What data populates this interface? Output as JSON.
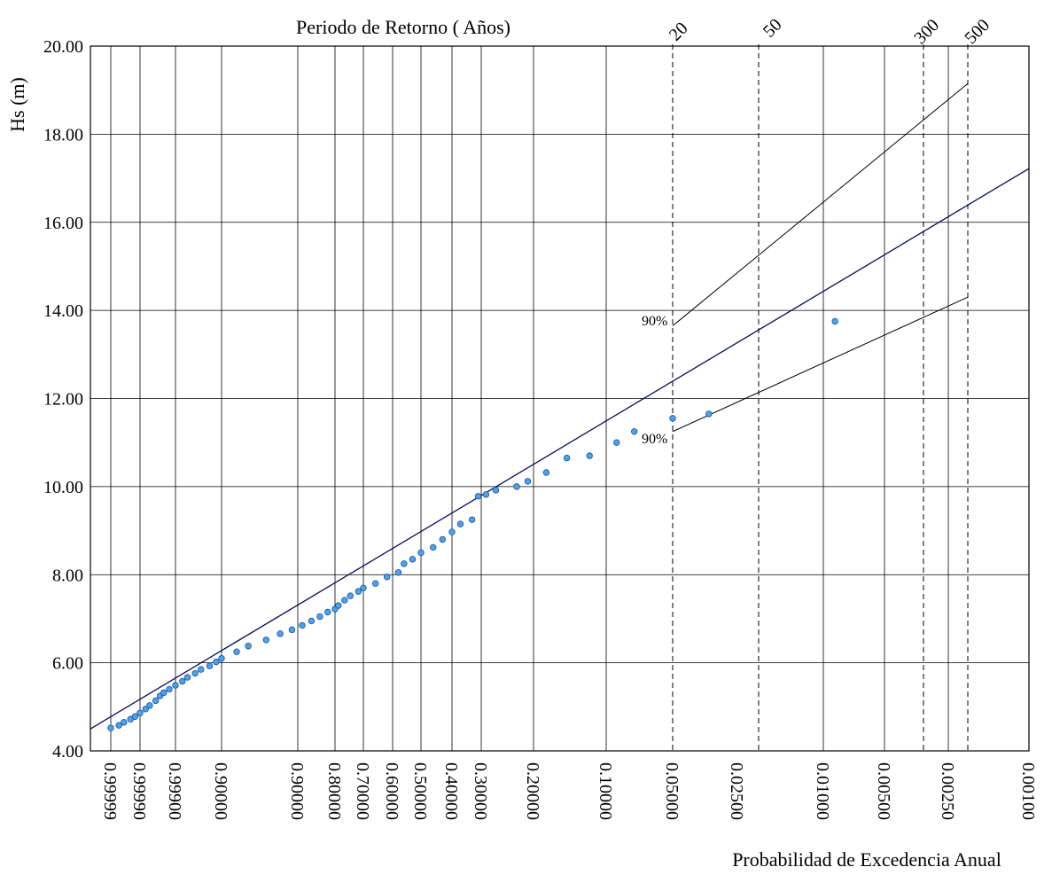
{
  "chart_data": {
    "type": "scatter",
    "title": "Periodo de Retorno ( Años)",
    "xlabel": "Probabilidad de Excedencia Anual",
    "ylabel": "Hs   (m)",
    "ylim": [
      4,
      20
    ],
    "y_ticks": [
      "4.00",
      "6.00",
      "8.00",
      "10.00",
      "12.00",
      "14.00",
      "16.00",
      "18.00",
      "20.00"
    ],
    "x_ticks": [
      "0.99999",
      "0.99990",
      "0.99900",
      "0.90000",
      "0.90000",
      "0.80000",
      "0.70000",
      "0.60000",
      "0.50000",
      "0.40000",
      "0.30000",
      "0.20000",
      "0.10000",
      "0.05000",
      "0.02500",
      "0.01000",
      "0.00500",
      "0.00250",
      "0.00100"
    ],
    "return_periods": [
      "20",
      "50",
      "300",
      "500"
    ],
    "confidence_label": "90%",
    "grid": true,
    "colors": {
      "points": "#4aa3f0",
      "point_edge": "#1f4f8f",
      "fit_line": "#0a0a5a",
      "band": "#000000"
    },
    "series": [
      {
        "values": [
          [
            0.99999,
            4.52
          ],
          [
            0.99998,
            4.58
          ],
          [
            0.99997,
            4.65
          ],
          [
            0.99995,
            4.72
          ],
          [
            0.99993,
            4.78
          ],
          [
            0.9999,
            4.86
          ],
          [
            0.99985,
            4.95
          ],
          [
            0.9998,
            5.03
          ],
          [
            0.9997,
            5.14
          ],
          [
            0.9996,
            5.25
          ],
          [
            0.9995,
            5.32
          ],
          [
            0.9993,
            5.4
          ],
          [
            0.999,
            5.49
          ],
          [
            0.9985,
            5.58
          ],
          [
            0.998,
            5.67
          ],
          [
            0.997,
            5.76
          ],
          [
            0.996,
            5.85
          ],
          [
            0.994,
            5.93
          ],
          [
            0.992,
            6.02
          ],
          [
            0.99,
            6.1
          ],
          [
            0.985,
            6.25
          ],
          [
            0.98,
            6.38
          ],
          [
            0.97,
            6.52
          ],
          [
            0.96,
            6.66
          ],
          [
            0.95,
            6.75
          ],
          [
            0.94,
            6.85
          ],
          [
            0.93,
            6.95
          ],
          [
            0.92,
            7.05
          ],
          [
            0.91,
            7.15
          ],
          [
            0.9,
            7.22
          ],
          [
            0.89,
            7.3
          ],
          [
            0.87,
            7.42
          ],
          [
            0.85,
            7.52
          ],
          [
            0.82,
            7.62
          ],
          [
            0.8,
            7.7
          ],
          [
            0.76,
            7.8
          ],
          [
            0.72,
            7.95
          ],
          [
            0.68,
            8.05
          ],
          [
            0.66,
            8.25
          ],
          [
            0.63,
            8.35
          ],
          [
            0.6,
            8.5
          ],
          [
            0.56,
            8.62
          ],
          [
            0.53,
            8.8
          ],
          [
            0.5,
            8.97
          ],
          [
            0.47,
            9.15
          ],
          [
            0.43,
            9.25
          ],
          [
            0.41,
            9.78
          ],
          [
            0.39,
            9.82
          ],
          [
            0.37,
            9.92
          ],
          [
            0.33,
            10.0
          ],
          [
            0.31,
            10.12
          ],
          [
            0.28,
            10.32
          ],
          [
            0.25,
            10.65
          ],
          [
            0.22,
            10.7
          ],
          [
            0.18,
            11.0
          ],
          [
            0.15,
            11.25
          ],
          [
            0.1,
            11.55
          ],
          [
            0.068,
            11.65
          ],
          [
            0.021,
            13.75
          ]
        ]
      }
    ],
    "fit_line": [
      [
        0.99999,
        4.5
      ],
      [
        0.001,
        17.22
      ]
    ],
    "confidence_upper": [
      [
        0.05,
        13.65
      ],
      [
        0.002,
        19.15
      ]
    ],
    "confidence_lower": [
      [
        0.05,
        11.25
      ],
      [
        0.002,
        14.3
      ]
    ]
  }
}
